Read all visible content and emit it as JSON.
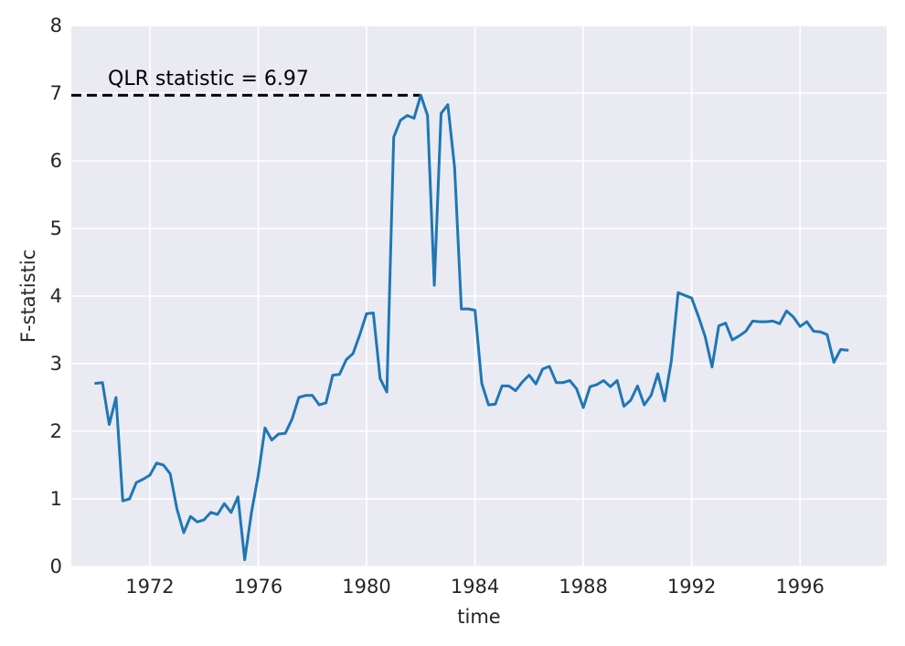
{
  "chart_data": {
    "type": "line",
    "title": "",
    "xlabel": "time",
    "ylabel": "F-statistic",
    "xlim": [
      1969.1,
      1999.2
    ],
    "ylim": [
      0,
      8
    ],
    "grid": true,
    "xticks": [
      1972,
      1976,
      1980,
      1984,
      1988,
      1992,
      1996
    ],
    "xtick_labels": [
      "1972",
      "1976",
      "1980",
      "1984",
      "1988",
      "1992",
      "1996"
    ],
    "yticks": [
      0,
      1,
      2,
      3,
      4,
      5,
      6,
      7,
      8
    ],
    "ytick_labels": [
      "0",
      "1",
      "2",
      "3",
      "4",
      "5",
      "6",
      "7",
      "8"
    ],
    "colors": {
      "plot_background": "#eaeaf2",
      "grid": "#ffffff",
      "series": "#1f77b4",
      "reference_line": "#000000"
    },
    "annotation": {
      "text": "QLR statistic = 6.97",
      "value": 6.97,
      "x_start": 1969.1,
      "x_end": 1982.0
    },
    "series": [
      {
        "x_start": 1970.0,
        "step": 0.25,
        "values": [
          2.71,
          2.72,
          2.1,
          2.5,
          0.97,
          1.0,
          1.24,
          1.29,
          1.35,
          1.53,
          1.5,
          1.37,
          0.85,
          0.5,
          0.74,
          0.66,
          0.69,
          0.8,
          0.77,
          0.93,
          0.8,
          1.03,
          0.1,
          0.8,
          1.35,
          2.05,
          1.87,
          1.96,
          1.97,
          2.18,
          2.5,
          2.53,
          2.53,
          2.39,
          2.42,
          2.83,
          2.84,
          3.06,
          3.15,
          3.43,
          3.74,
          3.75,
          2.78,
          2.58,
          6.35,
          6.6,
          6.67,
          6.63,
          6.97,
          6.67,
          4.16,
          6.7,
          6.83,
          5.9,
          3.81,
          3.81,
          3.79,
          2.71,
          2.39,
          2.4,
          2.67,
          2.67,
          2.6,
          2.73,
          2.83,
          2.7,
          2.92,
          2.96,
          2.72,
          2.72,
          2.75,
          2.63,
          2.35,
          2.66,
          2.69,
          2.75,
          2.66,
          2.75,
          2.37,
          2.46,
          2.67,
          2.39,
          2.53,
          2.85,
          2.45,
          3.04,
          4.05,
          4.01,
          3.97,
          3.7,
          3.4,
          2.95,
          3.56,
          3.6,
          3.35,
          3.41,
          3.48,
          3.63,
          3.62,
          3.62,
          3.63,
          3.59,
          3.78,
          3.69,
          3.55,
          3.62,
          3.48,
          3.47,
          3.43,
          3.02,
          3.21,
          3.2
        ]
      }
    ]
  }
}
